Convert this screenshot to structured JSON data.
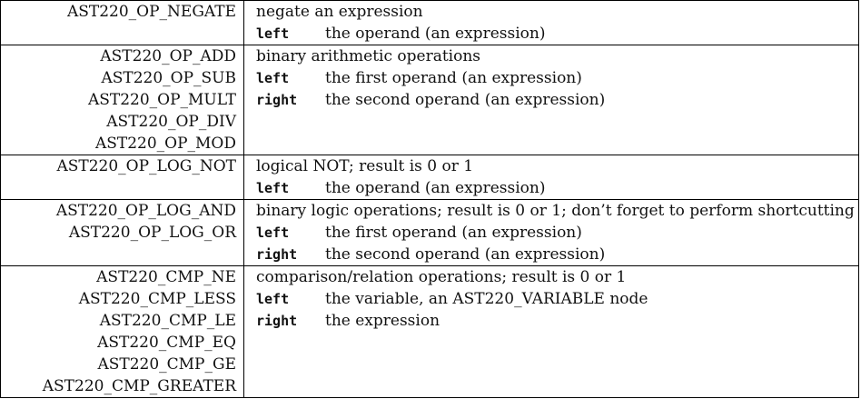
{
  "sections": [
    {
      "names": [
        "AST220_OP_NEGATE"
      ],
      "description": "negate an expression",
      "fields": [
        {
          "name": "left",
          "text": "the operand (an expression)"
        }
      ]
    },
    {
      "names": [
        "AST220_OP_ADD",
        "AST220_OP_SUB",
        "AST220_OP_MULT",
        "AST220_OP_DIV",
        "AST220_OP_MOD"
      ],
      "description": "binary arithmetic operations",
      "fields": [
        {
          "name": "left",
          "text": "the first operand (an expression)"
        },
        {
          "name": "right",
          "text": "the second operand (an expression)"
        }
      ]
    },
    {
      "names": [
        "AST220_OP_LOG_NOT"
      ],
      "description": "logical NOT; result is 0 or 1",
      "fields": [
        {
          "name": "left",
          "text": "the operand (an expression)"
        }
      ]
    },
    {
      "names": [
        "AST220_OP_LOG_AND",
        "AST220_OP_LOG_OR"
      ],
      "description": "binary logic operations; result is 0 or 1; don’t forget to perform shortcutting",
      "fields": [
        {
          "name": "left",
          "text": "the first operand (an expression)"
        },
        {
          "name": "right",
          "text": "the second operand (an expression)"
        }
      ]
    },
    {
      "names": [
        "AST220_CMP_NE",
        "AST220_CMP_LESS",
        "AST220_CMP_LE",
        "AST220_CMP_EQ",
        "AST220_CMP_GE",
        "AST220_CMP_GREATER"
      ],
      "description": "comparison/relation operations; result is 0 or 1",
      "fields": [
        {
          "name": "left",
          "text": "the variable, an AST220_VARIABLE node"
        },
        {
          "name": "right",
          "text": "the expression"
        }
      ]
    }
  ]
}
